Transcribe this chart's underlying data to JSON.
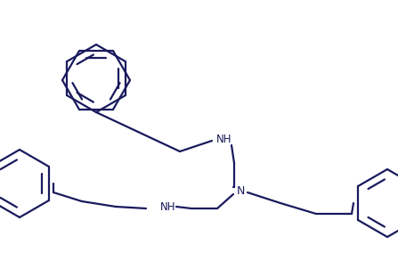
{
  "background_color": "#ffffff",
  "line_color": "#1a1a5e",
  "line_width": 1.6,
  "figsize": [
    4.47,
    2.84
  ],
  "dpi": 100,
  "xlim": [
    0,
    447
  ],
  "ylim": [
    0,
    284
  ]
}
